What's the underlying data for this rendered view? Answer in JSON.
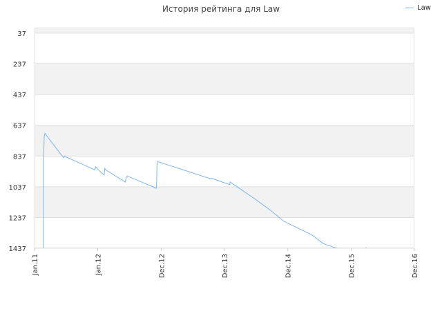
{
  "chart_data": {
    "type": "line",
    "title": "История рейтинга для Law",
    "xlabel": "",
    "ylabel": "",
    "y_axis_reversed": true,
    "ylim": [
      37,
      1437
    ],
    "y_ticks": [
      37,
      237,
      437,
      637,
      837,
      1037,
      1237,
      1437
    ],
    "x_ticks": [
      "Jan.11",
      "Jan.12",
      "Dec.12",
      "Dec.13",
      "Dec.14",
      "Dec.15",
      "Dec.16"
    ],
    "grid": true,
    "legend_position": "top-right",
    "series": [
      {
        "name": "Law",
        "color": "#7cb5ec",
        "x": [
          "2011-02-20",
          "2011-02-20",
          "2011-02-22",
          "2011-02-25",
          "2011-03-01",
          "2011-06-15",
          "2011-06-20",
          "2011-12-10",
          "2011-12-15",
          "2011-12-25",
          "2012-02-01",
          "2012-02-05",
          "2012-02-10",
          "2012-06-01",
          "2012-06-05",
          "2012-06-12",
          "2012-11-25",
          "2012-11-28",
          "2012-12-03",
          "2013-09-30",
          "2013-10-05",
          "2014-01-15",
          "2014-01-18",
          "2014-01-25",
          "2014-06-01",
          "2014-09-01",
          "2014-11-20",
          "2015-05-01",
          "2015-07-01",
          "2015-11-15",
          "2016-03-01",
          "2016-03-02"
        ],
        "y": [
          1437,
          860,
          840,
          710,
          690,
          848,
          838,
          927,
          907,
          922,
          960,
          917,
          927,
          1007,
          977,
          967,
          1047,
          887,
          874,
          985,
          982,
          1023,
          1005,
          1012,
          1111,
          1187,
          1262,
          1352,
          1407,
          1460,
          1500,
          1431
        ]
      }
    ]
  }
}
